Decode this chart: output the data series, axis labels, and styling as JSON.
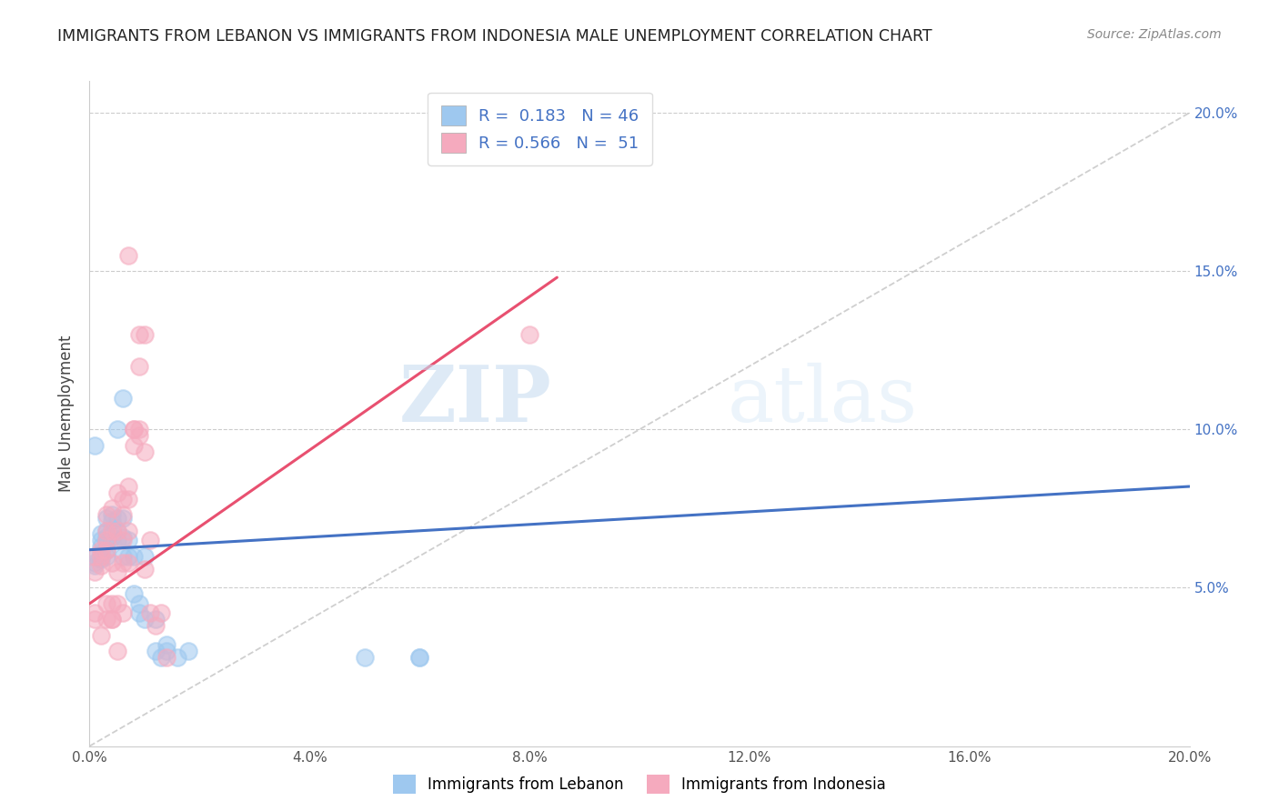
{
  "title": "IMMIGRANTS FROM LEBANON VS IMMIGRANTS FROM INDONESIA MALE UNEMPLOYMENT CORRELATION CHART",
  "source": "Source: ZipAtlas.com",
  "ylabel": "Male Unemployment",
  "xlim": [
    0.0,
    0.2
  ],
  "ylim": [
    0.0,
    0.21
  ],
  "x_ticks": [
    0.0,
    0.04,
    0.08,
    0.12,
    0.16,
    0.2
  ],
  "y_ticks": [
    0.0,
    0.05,
    0.1,
    0.15,
    0.2
  ],
  "lebanon_color": "#9EC8EF",
  "indonesia_color": "#F5AABE",
  "line_lebanon_color": "#4472C4",
  "line_indonesia_color": "#E85070",
  "legend_label1": "Immigrants from Lebanon",
  "legend_label2": "Immigrants from Indonesia",
  "R_lebanon": 0.183,
  "N_lebanon": 46,
  "R_indonesia": 0.566,
  "N_indonesia": 51,
  "watermark_zip": "ZIP",
  "watermark_atlas": "atlas",
  "lebanon_points": [
    [
      0.001,
      0.06
    ],
    [
      0.001,
      0.058
    ],
    [
      0.001,
      0.057
    ],
    [
      0.001,
      0.095
    ],
    [
      0.002,
      0.061
    ],
    [
      0.002,
      0.059
    ],
    [
      0.002,
      0.063
    ],
    [
      0.002,
      0.067
    ],
    [
      0.002,
      0.065
    ],
    [
      0.002,
      0.06
    ],
    [
      0.003,
      0.062
    ],
    [
      0.003,
      0.06
    ],
    [
      0.003,
      0.072
    ],
    [
      0.003,
      0.068
    ],
    [
      0.003,
      0.066
    ],
    [
      0.003,
      0.065
    ],
    [
      0.004,
      0.068
    ],
    [
      0.004,
      0.071
    ],
    [
      0.004,
      0.073
    ],
    [
      0.004,
      0.066
    ],
    [
      0.005,
      0.065
    ],
    [
      0.005,
      0.068
    ],
    [
      0.005,
      0.072
    ],
    [
      0.005,
      0.1
    ],
    [
      0.006,
      0.066
    ],
    [
      0.006,
      0.072
    ],
    [
      0.006,
      0.06
    ],
    [
      0.006,
      0.11
    ],
    [
      0.007,
      0.065
    ],
    [
      0.007,
      0.06
    ],
    [
      0.008,
      0.06
    ],
    [
      0.008,
      0.048
    ],
    [
      0.009,
      0.045
    ],
    [
      0.009,
      0.042
    ],
    [
      0.01,
      0.04
    ],
    [
      0.01,
      0.06
    ],
    [
      0.012,
      0.04
    ],
    [
      0.012,
      0.03
    ],
    [
      0.013,
      0.028
    ],
    [
      0.014,
      0.032
    ],
    [
      0.014,
      0.03
    ],
    [
      0.016,
      0.028
    ],
    [
      0.018,
      0.03
    ],
    [
      0.05,
      0.028
    ],
    [
      0.06,
      0.028
    ],
    [
      0.06,
      0.028
    ]
  ],
  "indonesia_points": [
    [
      0.001,
      0.055
    ],
    [
      0.001,
      0.06
    ],
    [
      0.001,
      0.042
    ],
    [
      0.001,
      0.04
    ],
    [
      0.002,
      0.057
    ],
    [
      0.002,
      0.06
    ],
    [
      0.002,
      0.062
    ],
    [
      0.002,
      0.035
    ],
    [
      0.003,
      0.065
    ],
    [
      0.003,
      0.062
    ],
    [
      0.003,
      0.073
    ],
    [
      0.003,
      0.068
    ],
    [
      0.003,
      0.045
    ],
    [
      0.003,
      0.04
    ],
    [
      0.004,
      0.075
    ],
    [
      0.004,
      0.068
    ],
    [
      0.004,
      0.058
    ],
    [
      0.004,
      0.045
    ],
    [
      0.004,
      0.04
    ],
    [
      0.004,
      0.04
    ],
    [
      0.005,
      0.08
    ],
    [
      0.005,
      0.068
    ],
    [
      0.005,
      0.055
    ],
    [
      0.005,
      0.045
    ],
    [
      0.005,
      0.03
    ],
    [
      0.006,
      0.078
    ],
    [
      0.006,
      0.073
    ],
    [
      0.006,
      0.065
    ],
    [
      0.006,
      0.058
    ],
    [
      0.006,
      0.042
    ],
    [
      0.007,
      0.082
    ],
    [
      0.007,
      0.078
    ],
    [
      0.007,
      0.068
    ],
    [
      0.007,
      0.058
    ],
    [
      0.007,
      0.155
    ],
    [
      0.008,
      0.095
    ],
    [
      0.008,
      0.1
    ],
    [
      0.008,
      0.1
    ],
    [
      0.009,
      0.13
    ],
    [
      0.009,
      0.12
    ],
    [
      0.009,
      0.1
    ],
    [
      0.009,
      0.098
    ],
    [
      0.01,
      0.13
    ],
    [
      0.01,
      0.093
    ],
    [
      0.01,
      0.056
    ],
    [
      0.011,
      0.065
    ],
    [
      0.011,
      0.042
    ],
    [
      0.012,
      0.038
    ],
    [
      0.013,
      0.042
    ],
    [
      0.014,
      0.028
    ],
    [
      0.08,
      0.13
    ]
  ]
}
